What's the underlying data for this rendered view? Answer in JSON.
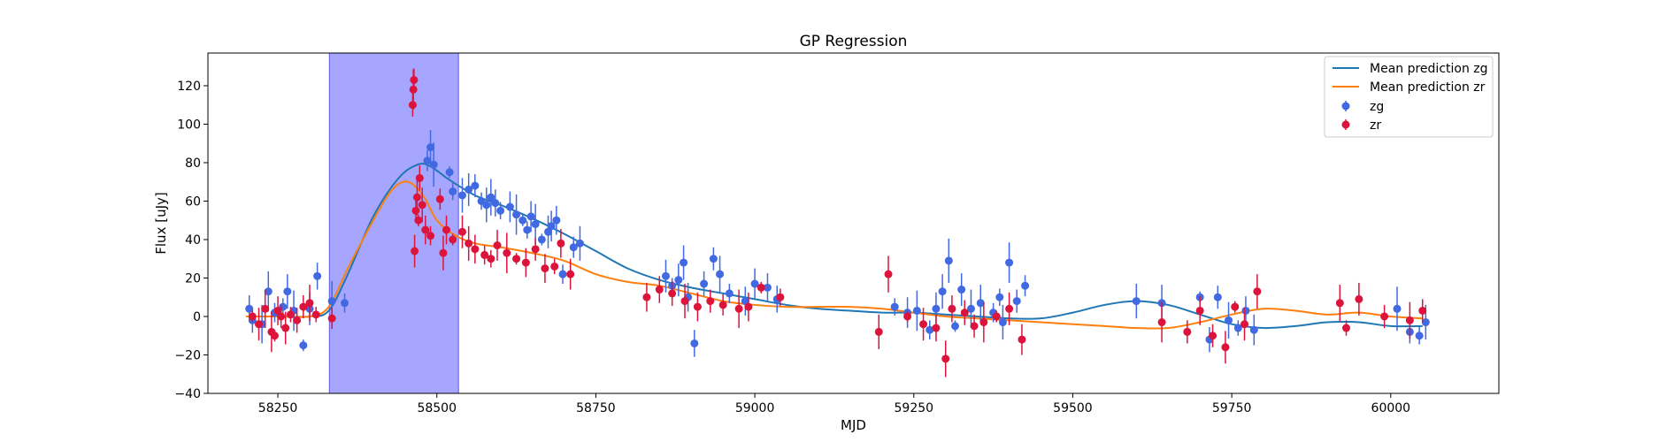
{
  "chart_data": {
    "type": "scatter",
    "title": "GP Regression",
    "xlabel": "MJD",
    "ylabel": "Flux [uJy]",
    "xlim": [
      58140,
      60170
    ],
    "ylim": [
      -40,
      137
    ],
    "xticks": [
      58250,
      58500,
      58750,
      59000,
      59250,
      59500,
      59750,
      60000
    ],
    "yticks": [
      -40,
      -20,
      0,
      20,
      40,
      60,
      80,
      100,
      120
    ],
    "grid": false,
    "legend_position": "top-right",
    "colors": {
      "zg_points": "#4169e1",
      "zr_points": "#dc143c",
      "zg_line": "#1f77b4",
      "zr_line": "#ff7f0e",
      "band": "#8080ff"
    },
    "shaded_region": {
      "x_start": 58331,
      "x_end": 58534
    },
    "series": [
      {
        "name": "Mean prediction zg",
        "kind": "line",
        "color": "#1f77b4",
        "x": [
          58200,
          58250,
          58300,
          58330,
          58360,
          58400,
          58440,
          58470,
          58490,
          58520,
          58560,
          58600,
          58650,
          58700,
          58750,
          58800,
          58850,
          58900,
          58950,
          59000,
          59050,
          59100,
          59150,
          59200,
          59250,
          59300,
          59350,
          59400,
          59450,
          59500,
          59550,
          59600,
          59650,
          59700,
          59750,
          59800,
          59850,
          59900,
          59950,
          60000,
          60050
        ],
        "y": [
          0,
          0,
          0,
          3,
          22,
          52,
          72,
          79,
          78,
          71,
          63,
          58,
          51,
          43,
          34,
          25,
          19,
          15,
          12,
          9,
          6,
          4,
          3,
          2,
          2,
          1,
          0,
          -1,
          -1,
          2,
          6,
          8,
          6,
          1,
          -4,
          -6,
          -5,
          -3,
          -3,
          -5,
          -5
        ]
      },
      {
        "name": "Mean prediction zr",
        "kind": "line",
        "color": "#ff7f0e",
        "x": [
          58200,
          58250,
          58300,
          58330,
          58360,
          58400,
          58430,
          58455,
          58480,
          58500,
          58530,
          58560,
          58600,
          58650,
          58700,
          58750,
          58800,
          58850,
          58900,
          58950,
          59000,
          59050,
          59100,
          59150,
          59200,
          59250,
          59300,
          59350,
          59400,
          59450,
          59500,
          59550,
          59600,
          59650,
          59700,
          59750,
          59800,
          59850,
          59900,
          59950,
          60000,
          60050
        ],
        "y": [
          0,
          0,
          0,
          5,
          25,
          50,
          66,
          70,
          62,
          50,
          42,
          38,
          36,
          33,
          29,
          22,
          18,
          16,
          12,
          8,
          6,
          5,
          5,
          5,
          4,
          2,
          0,
          -1,
          -2,
          -3,
          -4,
          -5,
          -6,
          -6,
          -3,
          1,
          4,
          3,
          1,
          2,
          0,
          -1
        ]
      },
      {
        "name": "zg",
        "kind": "points",
        "color": "#4169e1",
        "x": [
          58205,
          58210,
          58225,
          58235,
          58245,
          58258,
          58265,
          58275,
          58290,
          58300,
          58312,
          58335,
          58355,
          58485,
          58490,
          58495,
          58520,
          58525,
          58540,
          58550,
          58560,
          58570,
          58578,
          58585,
          58592,
          58600,
          58615,
          58625,
          58635,
          58642,
          58648,
          58655,
          58665,
          58675,
          58680,
          58688,
          58698,
          58715,
          58725,
          58860,
          58870,
          58880,
          58888,
          58895,
          58905,
          58920,
          58935,
          58945,
          58960,
          58985,
          59000,
          59020,
          59035,
          59220,
          59240,
          59255,
          59275,
          59285,
          59295,
          59305,
          59315,
          59325,
          59340,
          59355,
          59375,
          59385,
          59390,
          59400,
          59412,
          59425,
          59600,
          59640,
          59700,
          59715,
          59728,
          59745,
          59760,
          59772,
          59785,
          60010,
          60030,
          60045,
          60055
        ],
        "y": [
          4,
          -2,
          -4,
          13,
          2,
          5,
          13,
          3,
          -15,
          4,
          21,
          8,
          7,
          81,
          88,
          79,
          75,
          65,
          63,
          66,
          68,
          60,
          58,
          62,
          59,
          55,
          57,
          53,
          50,
          45,
          52,
          48,
          40,
          44,
          47,
          50,
          22,
          36,
          38,
          21,
          16,
          19,
          28,
          10,
          -14,
          17,
          30,
          22,
          12,
          8,
          17,
          15,
          9,
          5,
          2,
          3,
          -7,
          4,
          13,
          29,
          -5,
          14,
          4,
          7,
          2,
          10,
          -3,
          28,
          8,
          16,
          8,
          7,
          10,
          -12,
          10,
          -2,
          -6,
          3,
          -7,
          4,
          -8,
          -10,
          -3
        ]
      },
      {
        "name": "zr",
        "kind": "points",
        "color": "#dc143c",
        "x": [
          58210,
          58220,
          58230,
          58240,
          58245,
          58250,
          58255,
          58262,
          58270,
          58280,
          58290,
          58300,
          58310,
          58335,
          58462,
          58463,
          58464,
          58465,
          58467,
          58469,
          58471,
          58473,
          58477,
          58482,
          58490,
          58505,
          58510,
          58515,
          58525,
          58540,
          58550,
          58560,
          58575,
          58585,
          58595,
          58610,
          58625,
          58640,
          58655,
          58670,
          58685,
          58695,
          58710,
          58830,
          58850,
          58870,
          58890,
          58910,
          58930,
          58950,
          58975,
          58990,
          59010,
          59040,
          59195,
          59210,
          59240,
          59265,
          59285,
          59300,
          59310,
          59330,
          59345,
          59360,
          59380,
          59400,
          59420,
          59640,
          59680,
          59700,
          59720,
          59740,
          59755,
          59770,
          59790,
          59920,
          59930,
          59950,
          59990,
          60030,
          60050
        ],
        "y": [
          0,
          -4,
          4,
          -8,
          -10,
          3,
          0,
          -6,
          1,
          -2,
          5,
          7,
          1,
          -1,
          110,
          118,
          123,
          34,
          55,
          62,
          50,
          72,
          58,
          45,
          42,
          61,
          33,
          45,
          40,
          44,
          38,
          35,
          32,
          30,
          37,
          33,
          30,
          28,
          35,
          25,
          26,
          38,
          22,
          10,
          14,
          12,
          8,
          5,
          8,
          6,
          4,
          5,
          15,
          10,
          -8,
          22,
          0,
          -4,
          -6,
          -22,
          4,
          2,
          -5,
          -3,
          0,
          4,
          -12,
          -3,
          -8,
          3,
          -10,
          -16,
          5,
          -4,
          13,
          7,
          -6,
          9,
          0,
          -2,
          3
        ]
      }
    ]
  }
}
